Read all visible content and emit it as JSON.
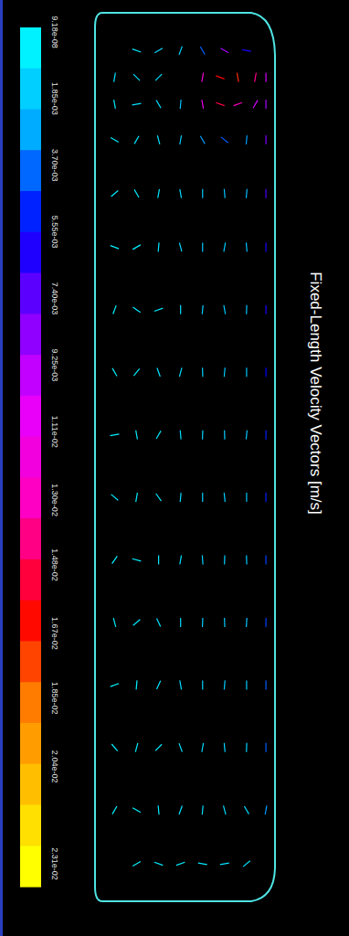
{
  "chart_data": {
    "type": "vector",
    "title": "Fixed-Length Velocity Vectors [m/s]",
    "xlim": [
      0,
      200
    ],
    "ylim": [
      0,
      1000
    ],
    "tick_labels": false,
    "grid": false,
    "colorbar": {
      "range": [
        9.18e-08,
        0.0231
      ],
      "ticks": [
        {
          "value": 9.18e-08,
          "label": "9.18e-08"
        },
        {
          "value": 0.00185,
          "label": "1.85e-03"
        },
        {
          "value": 0.0037,
          "label": "3.70e-03"
        },
        {
          "value": 0.00555,
          "label": "5.55e-03"
        },
        {
          "value": 0.0074,
          "label": "7.40e-03"
        },
        {
          "value": 0.00925,
          "label": "9.25e-03"
        },
        {
          "value": 0.0111,
          "label": "1.11e-02"
        },
        {
          "value": 0.013,
          "label": "1.30e-02"
        },
        {
          "value": 0.0148,
          "label": "1.48e-02"
        },
        {
          "value": 0.0167,
          "label": "1.67e-02"
        },
        {
          "value": 0.0185,
          "label": "1.85e-02"
        },
        {
          "value": 0.0204,
          "label": "2.04e-02"
        },
        {
          "value": 0.0231,
          "label": "2.31e-02"
        }
      ]
    },
    "vectors": [
      {
        "x": 45,
        "y": 40,
        "angle": 20,
        "magnitude": 0.0008
      },
      {
        "x": 70,
        "y": 40,
        "angle": 150,
        "magnitude": 0.0012
      },
      {
        "x": 95,
        "y": 40,
        "angle": 110,
        "magnitude": 0.0015
      },
      {
        "x": 120,
        "y": 40,
        "angle": 60,
        "magnitude": 0.004
      },
      {
        "x": 145,
        "y": 40,
        "angle": 30,
        "magnitude": 0.009
      },
      {
        "x": 170,
        "y": 40,
        "angle": 10,
        "magnitude": 0.006
      },
      {
        "x": 20,
        "y": 70,
        "angle": 100,
        "magnitude": 0.0009
      },
      {
        "x": 45,
        "y": 70,
        "angle": 45,
        "magnitude": 0.001
      },
      {
        "x": 70,
        "y": 70,
        "angle": 135,
        "magnitude": 0.0011
      },
      {
        "x": 120,
        "y": 70,
        "angle": 100,
        "magnitude": 0.012
      },
      {
        "x": 140,
        "y": 70,
        "angle": 200,
        "magnitude": 0.016
      },
      {
        "x": 160,
        "y": 70,
        "angle": 260,
        "magnitude": 0.017
      },
      {
        "x": 180,
        "y": 70,
        "angle": 280,
        "magnitude": 0.014
      },
      {
        "x": 192,
        "y": 70,
        "angle": 90,
        "magnitude": 0.01
      },
      {
        "x": 20,
        "y": 100,
        "angle": 80,
        "magnitude": 0.0007
      },
      {
        "x": 45,
        "y": 100,
        "angle": 170,
        "magnitude": 0.0009
      },
      {
        "x": 70,
        "y": 100,
        "angle": 60,
        "magnitude": 0.001
      },
      {
        "x": 95,
        "y": 100,
        "angle": 95,
        "magnitude": 0.002
      },
      {
        "x": 120,
        "y": 100,
        "angle": 80,
        "magnitude": 0.011
      },
      {
        "x": 140,
        "y": 100,
        "angle": 20,
        "magnitude": 0.015
      },
      {
        "x": 160,
        "y": 100,
        "angle": 340,
        "magnitude": 0.013
      },
      {
        "x": 180,
        "y": 100,
        "angle": 300,
        "magnitude": 0.01
      },
      {
        "x": 192,
        "y": 100,
        "angle": 90,
        "magnitude": 0.009
      },
      {
        "x": 20,
        "y": 140,
        "angle": 30,
        "magnitude": 0.0006
      },
      {
        "x": 45,
        "y": 140,
        "angle": 120,
        "magnitude": 0.0008
      },
      {
        "x": 70,
        "y": 140,
        "angle": 75,
        "magnitude": 0.0009
      },
      {
        "x": 95,
        "y": 140,
        "angle": 100,
        "magnitude": 0.0016
      },
      {
        "x": 120,
        "y": 140,
        "angle": 60,
        "magnitude": 0.003
      },
      {
        "x": 145,
        "y": 140,
        "angle": 40,
        "magnitude": 0.004
      },
      {
        "x": 170,
        "y": 140,
        "angle": 95,
        "magnitude": 0.003
      },
      {
        "x": 192,
        "y": 140,
        "angle": 90,
        "magnitude": 0.008
      },
      {
        "x": 20,
        "y": 200,
        "angle": 140,
        "magnitude": 0.0005
      },
      {
        "x": 45,
        "y": 200,
        "angle": 60,
        "magnitude": 0.0007
      },
      {
        "x": 70,
        "y": 200,
        "angle": 100,
        "magnitude": 0.0008
      },
      {
        "x": 95,
        "y": 200,
        "angle": 80,
        "magnitude": 0.0012
      },
      {
        "x": 120,
        "y": 200,
        "angle": 90,
        "magnitude": 0.0018
      },
      {
        "x": 145,
        "y": 200,
        "angle": 85,
        "magnitude": 0.002
      },
      {
        "x": 170,
        "y": 200,
        "angle": 95,
        "magnitude": 0.0022
      },
      {
        "x": 192,
        "y": 200,
        "angle": 90,
        "magnitude": 0.007
      },
      {
        "x": 20,
        "y": 260,
        "angle": 20,
        "magnitude": 0.0005
      },
      {
        "x": 45,
        "y": 260,
        "angle": 150,
        "magnitude": 0.0006
      },
      {
        "x": 70,
        "y": 260,
        "angle": 95,
        "magnitude": 0.0008
      },
      {
        "x": 95,
        "y": 260,
        "angle": 75,
        "magnitude": 0.0011
      },
      {
        "x": 120,
        "y": 260,
        "angle": 90,
        "magnitude": 0.0017
      },
      {
        "x": 145,
        "y": 260,
        "angle": 100,
        "magnitude": 0.0019
      },
      {
        "x": 170,
        "y": 260,
        "angle": 85,
        "magnitude": 0.0021
      },
      {
        "x": 192,
        "y": 260,
        "angle": 90,
        "magnitude": 0.006
      },
      {
        "x": 20,
        "y": 330,
        "angle": 110,
        "magnitude": 0.0004
      },
      {
        "x": 45,
        "y": 330,
        "angle": 35,
        "magnitude": 0.0006
      },
      {
        "x": 70,
        "y": 330,
        "angle": 160,
        "magnitude": 0.0007
      },
      {
        "x": 95,
        "y": 330,
        "angle": 90,
        "magnitude": 0.001
      },
      {
        "x": 120,
        "y": 330,
        "angle": 95,
        "magnitude": 0.0016
      },
      {
        "x": 145,
        "y": 330,
        "angle": 80,
        "magnitude": 0.0018
      },
      {
        "x": 170,
        "y": 330,
        "angle": 92,
        "magnitude": 0.002
      },
      {
        "x": 192,
        "y": 330,
        "angle": 90,
        "magnitude": 0.006
      },
      {
        "x": 20,
        "y": 400,
        "angle": 60,
        "magnitude": 0.0005
      },
      {
        "x": 45,
        "y": 400,
        "angle": 130,
        "magnitude": 0.0006
      },
      {
        "x": 70,
        "y": 400,
        "angle": 70,
        "magnitude": 0.0008
      },
      {
        "x": 95,
        "y": 400,
        "angle": 105,
        "magnitude": 0.0011
      },
      {
        "x": 120,
        "y": 400,
        "angle": 88,
        "magnitude": 0.0015
      },
      {
        "x": 145,
        "y": 400,
        "angle": 95,
        "magnitude": 0.0017
      },
      {
        "x": 170,
        "y": 400,
        "angle": 90,
        "magnitude": 0.0019
      },
      {
        "x": 192,
        "y": 400,
        "angle": 90,
        "magnitude": 0.0055
      },
      {
        "x": 20,
        "y": 470,
        "angle": 170,
        "magnitude": 0.0004
      },
      {
        "x": 45,
        "y": 470,
        "angle": 80,
        "magnitude": 0.0005
      },
      {
        "x": 70,
        "y": 470,
        "angle": 120,
        "magnitude": 0.0007
      },
      {
        "x": 95,
        "y": 470,
        "angle": 85,
        "magnitude": 0.001
      },
      {
        "x": 120,
        "y": 470,
        "angle": 92,
        "magnitude": 0.0014
      },
      {
        "x": 145,
        "y": 470,
        "angle": 88,
        "magnitude": 0.0016
      },
      {
        "x": 170,
        "y": 470,
        "angle": 96,
        "magnitude": 0.0018
      },
      {
        "x": 192,
        "y": 470,
        "angle": 90,
        "magnitude": 0.005
      },
      {
        "x": 20,
        "y": 540,
        "angle": 40,
        "magnitude": 0.0005
      },
      {
        "x": 45,
        "y": 540,
        "angle": 100,
        "magnitude": 0.0006
      },
      {
        "x": 70,
        "y": 540,
        "angle": 55,
        "magnitude": 0.0007
      },
      {
        "x": 95,
        "y": 540,
        "angle": 95,
        "magnitude": 0.0011
      },
      {
        "x": 120,
        "y": 540,
        "angle": 90,
        "magnitude": 0.0015
      },
      {
        "x": 145,
        "y": 540,
        "angle": 84,
        "magnitude": 0.0017
      },
      {
        "x": 170,
        "y": 540,
        "angle": 90,
        "magnitude": 0.0019
      },
      {
        "x": 192,
        "y": 540,
        "angle": 90,
        "magnitude": 0.005
      },
      {
        "x": 20,
        "y": 610,
        "angle": 125,
        "magnitude": 0.0004
      },
      {
        "x": 45,
        "y": 610,
        "angle": 15,
        "magnitude": 0.0005
      },
      {
        "x": 70,
        "y": 610,
        "angle": 90,
        "magnitude": 0.0007
      },
      {
        "x": 95,
        "y": 610,
        "angle": 100,
        "magnitude": 0.001
      },
      {
        "x": 120,
        "y": 610,
        "angle": 86,
        "magnitude": 0.0014
      },
      {
        "x": 145,
        "y": 610,
        "angle": 92,
        "magnitude": 0.0016
      },
      {
        "x": 170,
        "y": 610,
        "angle": 88,
        "magnitude": 0.0018
      },
      {
        "x": 192,
        "y": 610,
        "angle": 90,
        "magnitude": 0.0045
      },
      {
        "x": 20,
        "y": 680,
        "angle": 75,
        "magnitude": 0.0005
      },
      {
        "x": 45,
        "y": 680,
        "angle": 140,
        "magnitude": 0.0006
      },
      {
        "x": 70,
        "y": 680,
        "angle": 65,
        "magnitude": 0.0008
      },
      {
        "x": 95,
        "y": 680,
        "angle": 90,
        "magnitude": 0.0012
      },
      {
        "x": 120,
        "y": 680,
        "angle": 92,
        "magnitude": 0.0015
      },
      {
        "x": 145,
        "y": 680,
        "angle": 88,
        "magnitude": 0.0017
      },
      {
        "x": 170,
        "y": 680,
        "angle": 94,
        "magnitude": 0.0018
      },
      {
        "x": 192,
        "y": 680,
        "angle": 90,
        "magnitude": 0.0045
      },
      {
        "x": 20,
        "y": 750,
        "angle": 160,
        "magnitude": 0.0004
      },
      {
        "x": 45,
        "y": 750,
        "angle": 95,
        "magnitude": 0.0005
      },
      {
        "x": 70,
        "y": 750,
        "angle": 115,
        "magnitude": 0.0007
      },
      {
        "x": 95,
        "y": 750,
        "angle": 80,
        "magnitude": 0.001
      },
      {
        "x": 120,
        "y": 750,
        "angle": 90,
        "magnitude": 0.0014
      },
      {
        "x": 145,
        "y": 750,
        "angle": 95,
        "magnitude": 0.0016
      },
      {
        "x": 170,
        "y": 750,
        "angle": 90,
        "magnitude": 0.0017
      },
      {
        "x": 192,
        "y": 750,
        "angle": 90,
        "magnitude": 0.004
      },
      {
        "x": 20,
        "y": 820,
        "angle": 50,
        "magnitude": 0.0005
      },
      {
        "x": 45,
        "y": 820,
        "angle": 105,
        "magnitude": 0.0006
      },
      {
        "x": 70,
        "y": 820,
        "angle": 135,
        "magnitude": 0.0007
      },
      {
        "x": 95,
        "y": 820,
        "angle": 70,
        "magnitude": 0.0009
      },
      {
        "x": 120,
        "y": 820,
        "angle": 100,
        "magnitude": 0.0012
      },
      {
        "x": 145,
        "y": 820,
        "angle": 85,
        "magnitude": 0.0014
      },
      {
        "x": 170,
        "y": 820,
        "angle": 92,
        "magnitude": 0.0015
      },
      {
        "x": 192,
        "y": 820,
        "angle": 90,
        "magnitude": 0.004
      },
      {
        "x": 20,
        "y": 890,
        "angle": 120,
        "magnitude": 0.0004
      },
      {
        "x": 45,
        "y": 890,
        "angle": 30,
        "magnitude": 0.0005
      },
      {
        "x": 70,
        "y": 890,
        "angle": 85,
        "magnitude": 0.0006
      },
      {
        "x": 95,
        "y": 890,
        "angle": 110,
        "magnitude": 0.0008
      },
      {
        "x": 120,
        "y": 890,
        "angle": 95,
        "magnitude": 0.001
      },
      {
        "x": 145,
        "y": 890,
        "angle": 75,
        "magnitude": 0.0012
      },
      {
        "x": 170,
        "y": 890,
        "angle": 60,
        "magnitude": 0.0012
      },
      {
        "x": 192,
        "y": 890,
        "angle": 100,
        "magnitude": 0.003
      },
      {
        "x": 45,
        "y": 950,
        "angle": 150,
        "magnitude": 0.0004
      },
      {
        "x": 70,
        "y": 950,
        "angle": 20,
        "magnitude": 0.0005
      },
      {
        "x": 95,
        "y": 950,
        "angle": 160,
        "magnitude": 0.0006
      },
      {
        "x": 120,
        "y": 950,
        "angle": 10,
        "magnitude": 0.0007
      },
      {
        "x": 145,
        "y": 950,
        "angle": 170,
        "magnitude": 0.0008
      },
      {
        "x": 170,
        "y": 950,
        "angle": 140,
        "magnitude": 0.0009
      }
    ]
  }
}
